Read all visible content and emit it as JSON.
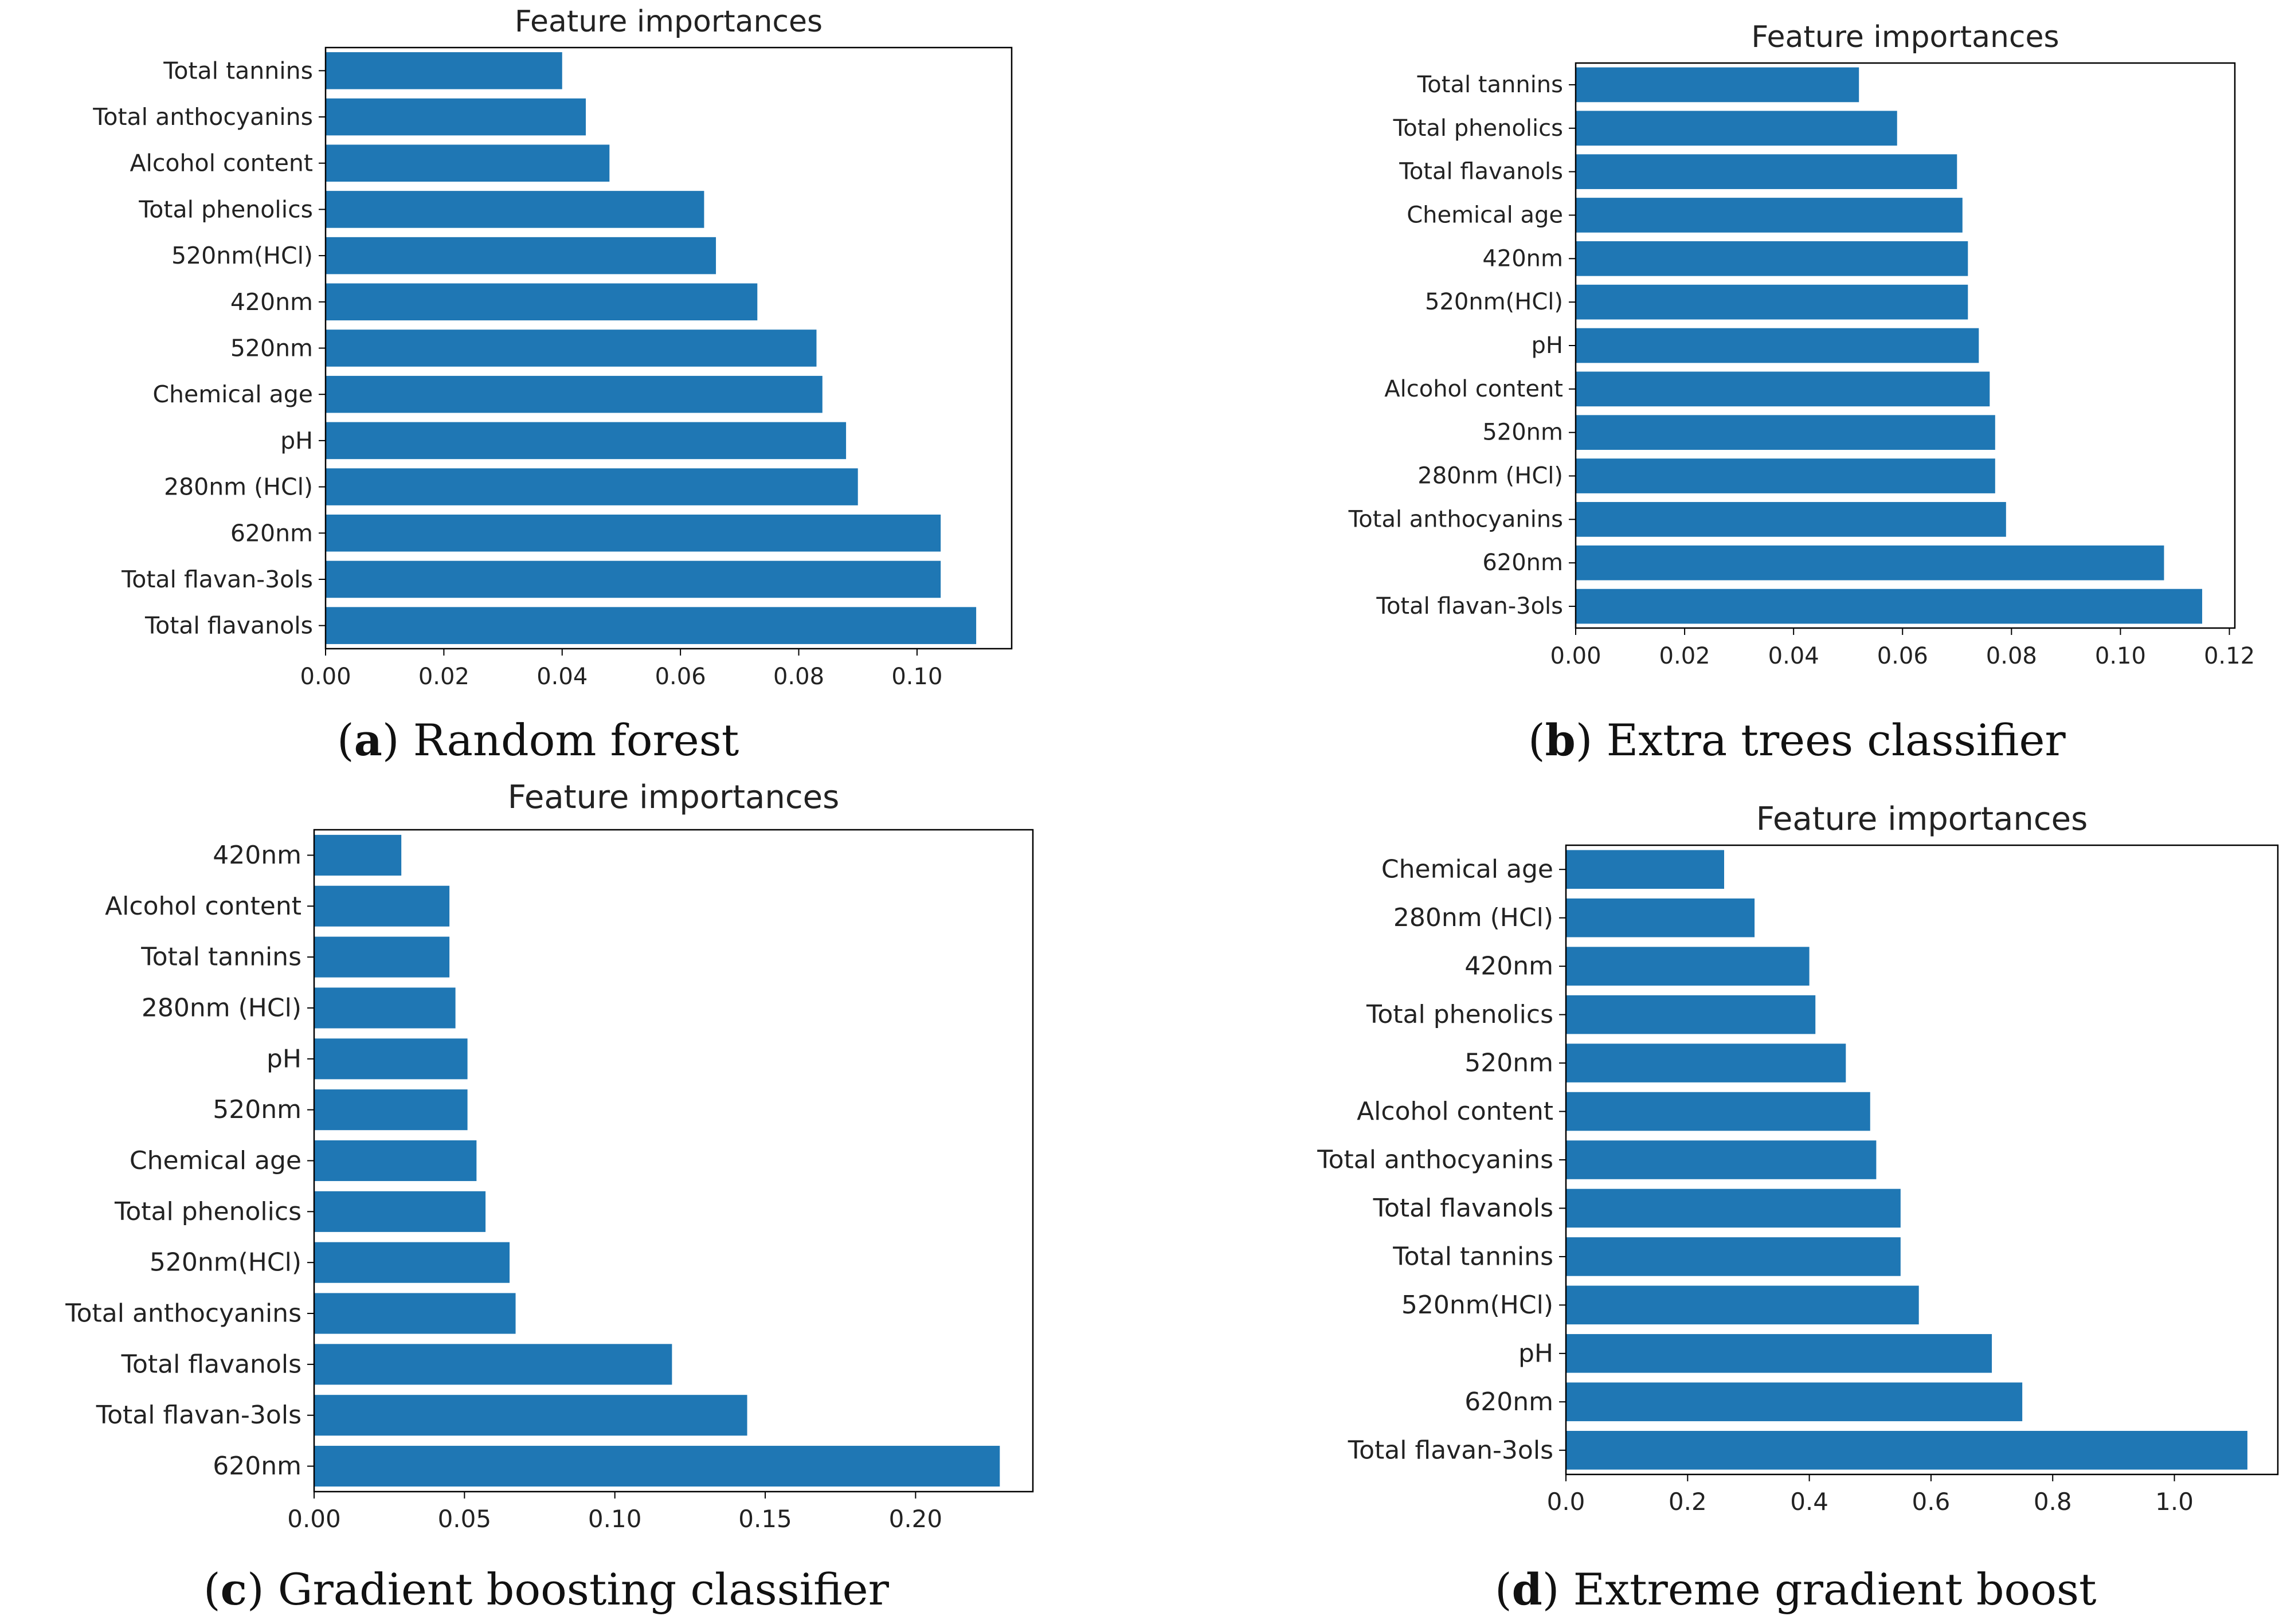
{
  "chart_data": [
    {
      "type": "bar",
      "orientation": "horizontal",
      "title": "Feature importances",
      "caption_letter": "a",
      "caption_text": "Random forest",
      "color": "#1f77b4",
      "categories": [
        "Total tannins",
        "Total anthocyanins",
        "Alcohol content",
        "Total phenolics",
        "520nm(HCl)",
        "420nm",
        "520nm",
        "Chemical age",
        "pH",
        "280nm (HCl)",
        "620nm",
        "Total flavan-3ols",
        "Total flavanols"
      ],
      "values": [
        0.04,
        0.044,
        0.048,
        0.064,
        0.066,
        0.073,
        0.083,
        0.084,
        0.088,
        0.09,
        0.104,
        0.104,
        0.11
      ],
      "xlim": [
        0,
        0.116
      ],
      "xticks": [
        0,
        0.02,
        0.04,
        0.06,
        0.08,
        0.1
      ],
      "xtick_labels": [
        "0.00",
        "0.02",
        "0.04",
        "0.06",
        "0.08",
        "0.10"
      ],
      "xlabel": "",
      "ylabel": ""
    },
    {
      "type": "bar",
      "orientation": "horizontal",
      "title": "Feature importances",
      "caption_letter": "b",
      "caption_text": "Extra trees classifier",
      "color": "#1f77b4",
      "categories": [
        "Total tannins",
        "Total phenolics",
        "Total flavanols",
        "Chemical age",
        "420nm",
        "520nm(HCl)",
        "pH",
        "Alcohol content",
        "520nm",
        "280nm (HCl)",
        "Total anthocyanins",
        "620nm",
        "Total flavan-3ols"
      ],
      "values": [
        0.052,
        0.059,
        0.07,
        0.071,
        0.072,
        0.072,
        0.074,
        0.076,
        0.077,
        0.077,
        0.079,
        0.108,
        0.115
      ],
      "xlim": [
        0,
        0.121
      ],
      "xticks": [
        0,
        0.02,
        0.04,
        0.06,
        0.08,
        0.1,
        0.12
      ],
      "xtick_labels": [
        "0.00",
        "0.02",
        "0.04",
        "0.06",
        "0.08",
        "0.10",
        "0.12"
      ],
      "xlabel": "",
      "ylabel": ""
    },
    {
      "type": "bar",
      "orientation": "horizontal",
      "title": "Feature importances",
      "caption_letter": "c",
      "caption_text": "Gradient boosting classifier",
      "color": "#1f77b4",
      "categories": [
        "420nm",
        "Alcohol content",
        "Total tannins",
        "280nm (HCl)",
        "pH",
        "520nm",
        "Chemical age",
        "Total phenolics",
        "520nm(HCl)",
        "Total anthocyanins",
        "Total flavanols",
        "Total flavan-3ols",
        "620nm"
      ],
      "values": [
        0.029,
        0.045,
        0.045,
        0.047,
        0.051,
        0.051,
        0.054,
        0.057,
        0.065,
        0.067,
        0.119,
        0.144,
        0.228
      ],
      "xlim": [
        0,
        0.239
      ],
      "xticks": [
        0,
        0.05,
        0.1,
        0.15,
        0.2
      ],
      "xtick_labels": [
        "0.00",
        "0.05",
        "0.10",
        "0.15",
        "0.20"
      ],
      "xlabel": "",
      "ylabel": ""
    },
    {
      "type": "bar",
      "orientation": "horizontal",
      "title": "Feature importances",
      "caption_letter": "d",
      "caption_text": "Extreme gradient boost",
      "color": "#1f77b4",
      "categories": [
        "Chemical age",
        "280nm (HCl)",
        "420nm",
        "Total phenolics",
        "520nm",
        "Alcohol content",
        "Total anthocyanins",
        "Total flavanols",
        "Total tannins",
        "520nm(HCl)",
        "pH",
        "620nm",
        "Total flavan-3ols"
      ],
      "values": [
        0.26,
        0.31,
        0.4,
        0.41,
        0.46,
        0.5,
        0.51,
        0.55,
        0.55,
        0.58,
        0.7,
        0.75,
        1.12
      ],
      "xlim": [
        0,
        1.17
      ],
      "xticks": [
        0,
        0.2,
        0.4,
        0.6,
        0.8,
        1.0
      ],
      "xtick_labels": [
        "0.0",
        "0.2",
        "0.4",
        "0.6",
        "0.8",
        "1.0"
      ],
      "xlabel": "",
      "ylabel": ""
    }
  ]
}
